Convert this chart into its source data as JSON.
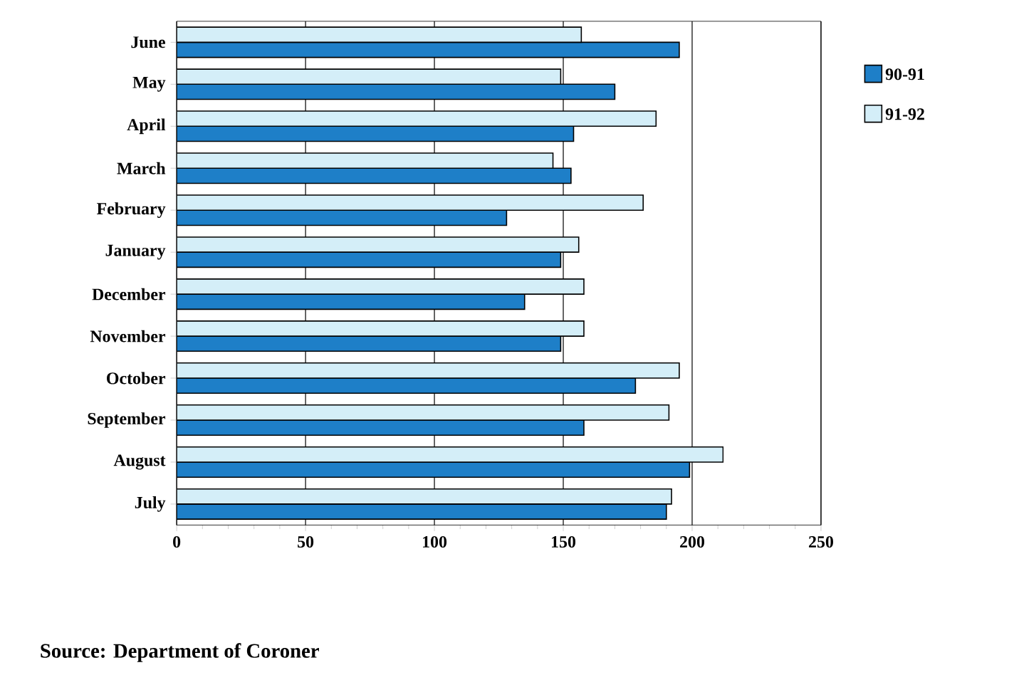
{
  "chart_data": {
    "type": "bar",
    "orientation": "horizontal",
    "categories": [
      "June",
      "May",
      "April",
      "March",
      "February",
      "January",
      "December",
      "November",
      "October",
      "September",
      "August",
      "July"
    ],
    "series": [
      {
        "name": "90-91",
        "color": "#1e7fc8",
        "values": [
          195,
          170,
          154,
          153,
          128,
          149,
          135,
          149,
          178,
          158,
          199,
          190
        ]
      },
      {
        "name": "91-92",
        "color": "#d4eef8",
        "values": [
          157,
          149,
          186,
          146,
          181,
          156,
          158,
          158,
          195,
          191,
          212,
          192
        ]
      }
    ],
    "xlim": [
      0,
      250
    ],
    "xticks": [
      0,
      50,
      100,
      150,
      200,
      250
    ],
    "grid": "x",
    "legend": "right",
    "annotations": [
      "Source:  Department of Coroner"
    ]
  }
}
